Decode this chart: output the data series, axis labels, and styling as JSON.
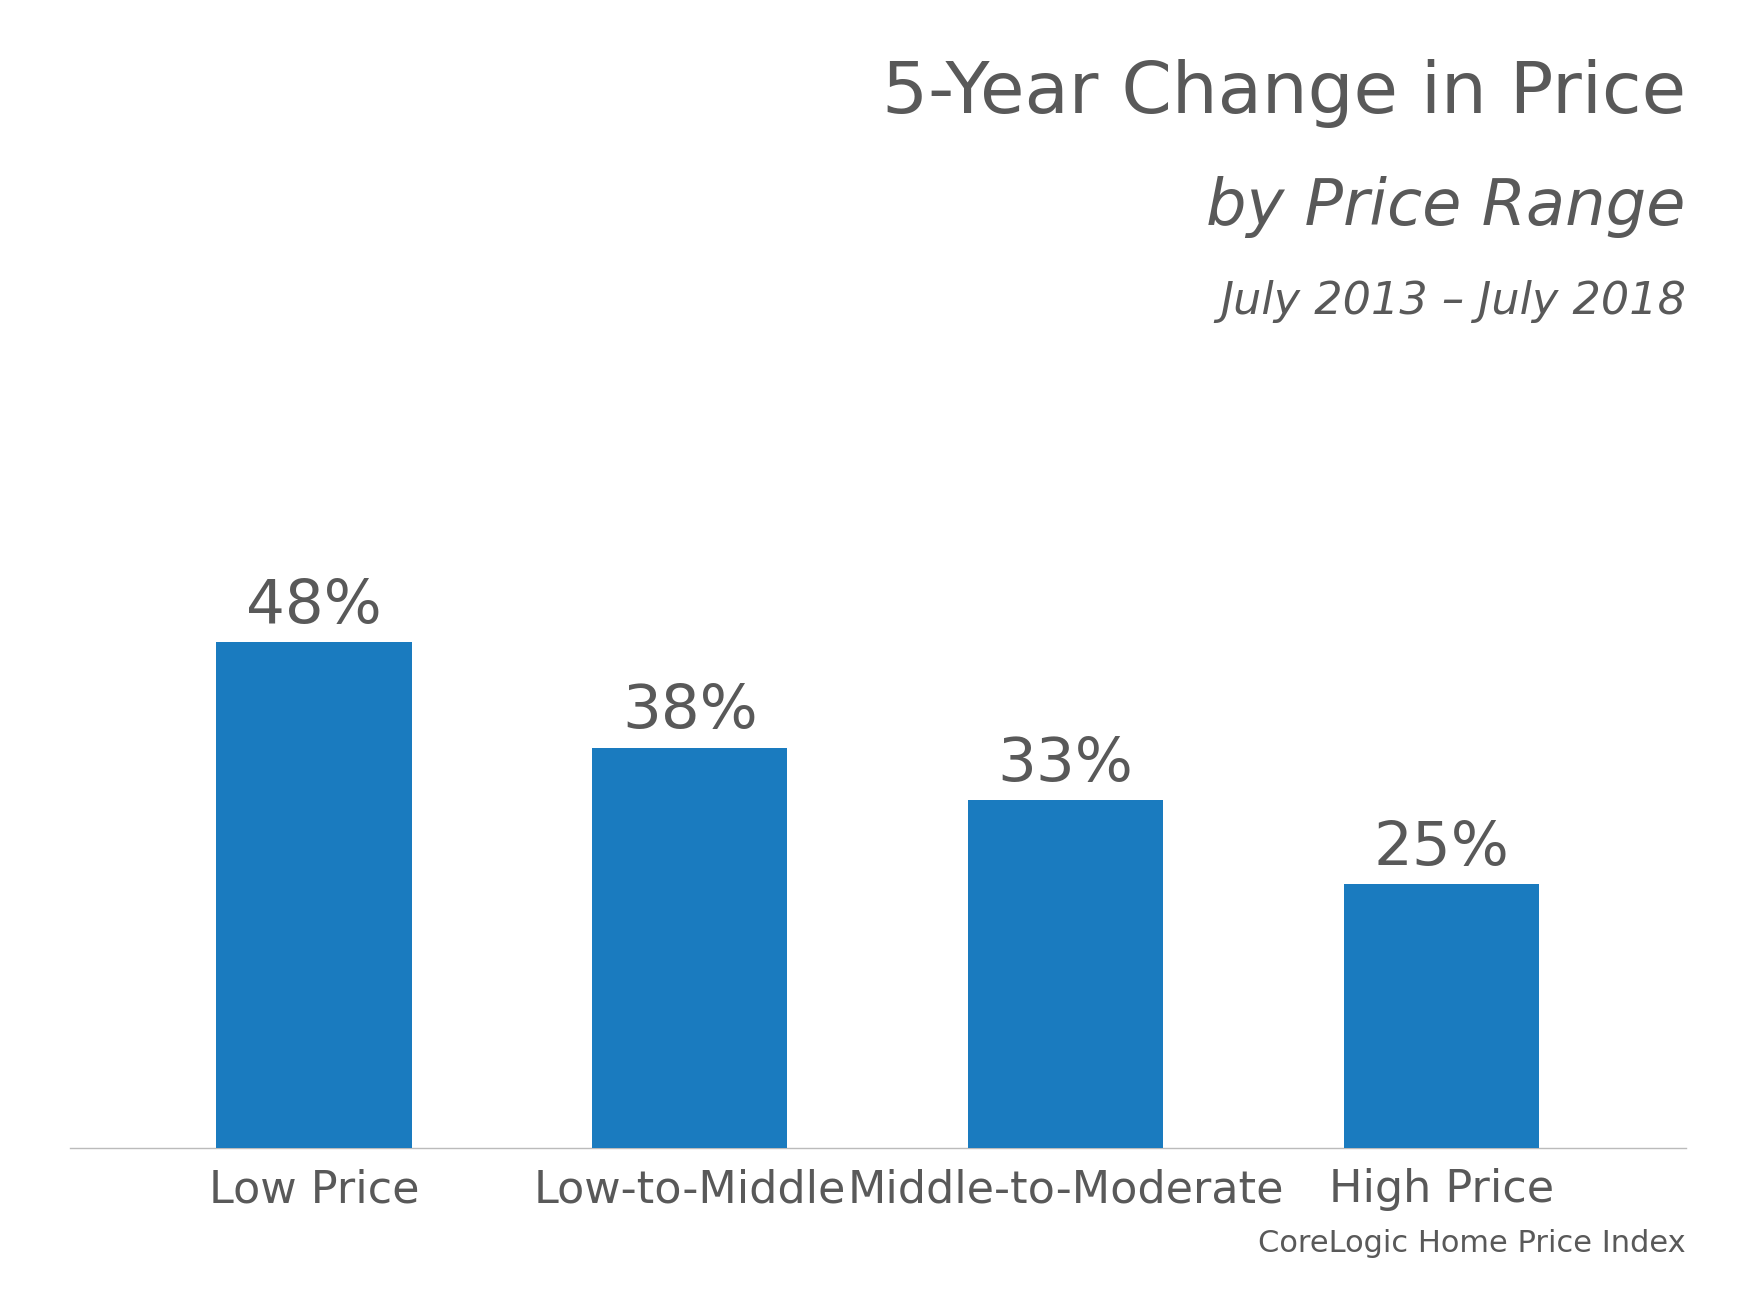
{
  "title_line1": "5-Year Change in Price",
  "title_line2": "by Price Range",
  "title_line3": "July 2013 – July 2018",
  "categories": [
    "Low Price",
    "Low-to-Middle",
    "Middle-to-Moderate",
    "High Price"
  ],
  "values": [
    48,
    38,
    33,
    25
  ],
  "labels": [
    "48%",
    "38%",
    "33%",
    "25%"
  ],
  "bar_color": "#1a7bbf",
  "text_color": "#595959",
  "background_color": "#ffffff",
  "source_text": "CoreLogic Home Price Index",
  "title1_fontsize": 52,
  "title2_fontsize": 46,
  "title3_fontsize": 32,
  "label_fontsize": 44,
  "tick_fontsize": 32,
  "source_fontsize": 22,
  "ylim": [
    0,
    57
  ],
  "bar_width": 0.52
}
